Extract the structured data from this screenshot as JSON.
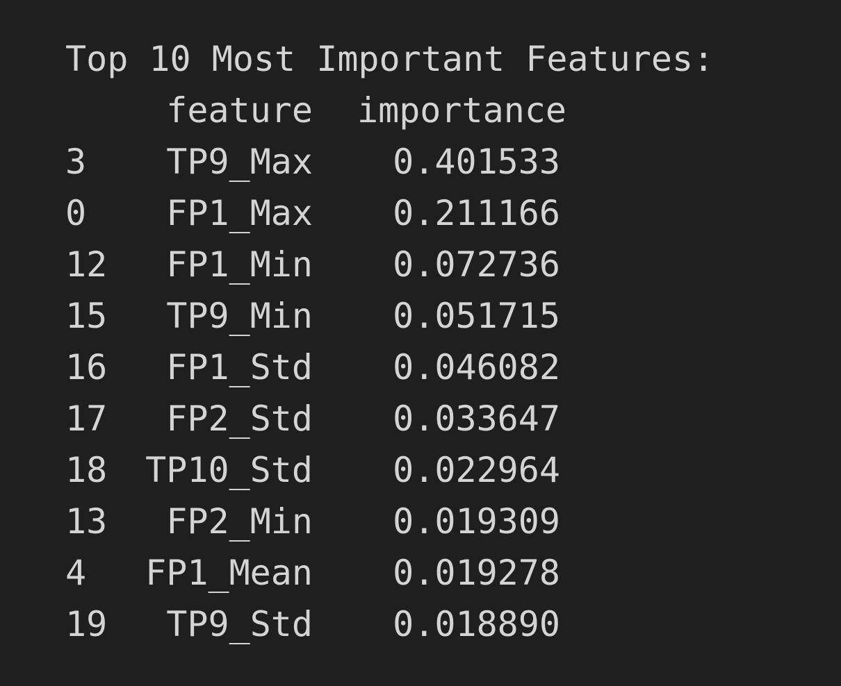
{
  "title": "Top 10 Most Important Features:",
  "columns": {
    "index": "",
    "feature": "feature",
    "importance": "importance"
  },
  "rows": [
    {
      "index": "3",
      "feature": "TP9_Max",
      "importance": "0.401533"
    },
    {
      "index": "0",
      "feature": "FP1_Max",
      "importance": "0.211166"
    },
    {
      "index": "12",
      "feature": "FP1_Min",
      "importance": "0.072736"
    },
    {
      "index": "15",
      "feature": "TP9_Min",
      "importance": "0.051715"
    },
    {
      "index": "16",
      "feature": "FP1_Std",
      "importance": "0.046082"
    },
    {
      "index": "17",
      "feature": "FP2_Std",
      "importance": "0.033647"
    },
    {
      "index": "18",
      "feature": "TP10_Std",
      "importance": "0.022964"
    },
    {
      "index": "13",
      "feature": "FP2_Min",
      "importance": "0.019309"
    },
    {
      "index": "4",
      "feature": "FP1_Mean",
      "importance": "0.019278"
    },
    {
      "index": "19",
      "feature": "TP9_Std",
      "importance": "0.018890"
    }
  ]
}
